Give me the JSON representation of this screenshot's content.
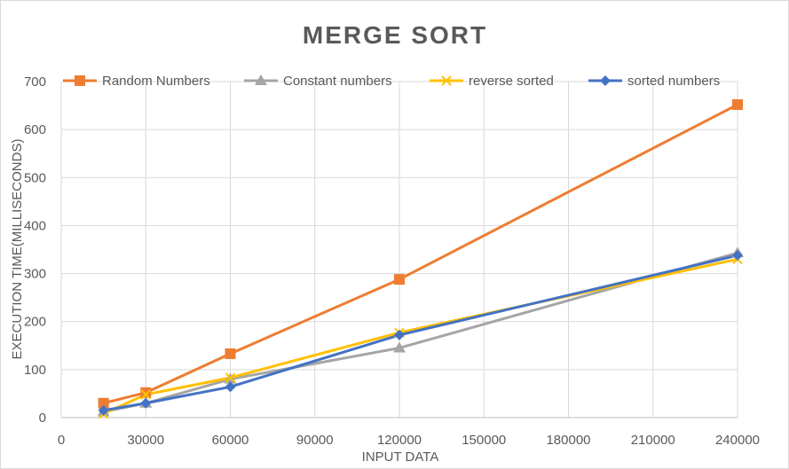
{
  "chart_data": {
    "type": "line",
    "title": "MERGE SORT",
    "xlabel": "INPUT DATA",
    "ylabel": "EXECUTION TIME(MILLISECONDS)",
    "xlim": [
      0,
      240000
    ],
    "ylim": [
      0,
      700
    ],
    "xticks": [
      0,
      30000,
      60000,
      90000,
      120000,
      150000,
      180000,
      210000,
      240000
    ],
    "yticks": [
      0,
      100,
      200,
      300,
      400,
      500,
      600,
      700
    ],
    "xtick_labels": [
      "0",
      "30000",
      "60000",
      "90000",
      "120000",
      "150000",
      "180000",
      "210000",
      "240000"
    ],
    "ytick_labels": [
      "0",
      "100",
      "200",
      "300",
      "400",
      "500",
      "600",
      "700"
    ],
    "grid": true,
    "legend_position": "top",
    "x": [
      15000,
      30000,
      60000,
      120000,
      240000
    ],
    "series": [
      {
        "name": "Random Numbers",
        "color": "#ED7D31",
        "marker": "square",
        "values": [
          30,
          52,
          133,
          288,
          652
        ]
      },
      {
        "name": "Constant numbers",
        "color": "#A5A5A5",
        "marker": "triangle",
        "values": [
          12,
          30,
          80,
          145,
          343
        ]
      },
      {
        "name": "reverse sorted",
        "color": "#FFC000",
        "marker": "x",
        "values": [
          8,
          48,
          83,
          177,
          330
        ]
      },
      {
        "name": "sorted numbers",
        "color": "#4472C4",
        "marker": "diamond",
        "values": [
          15,
          30,
          64,
          172,
          338
        ]
      }
    ]
  }
}
